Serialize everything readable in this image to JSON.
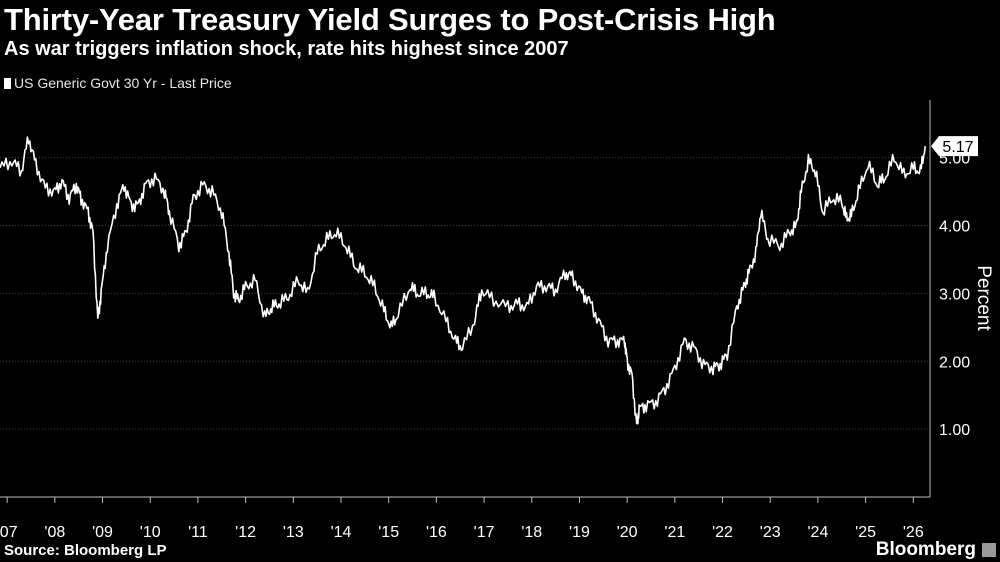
{
  "header": {
    "title": "Thirty-Year Treasury Yield Surges to Post-Crisis High",
    "subtitle": "As war triggers inflation shock, rate hits highest since 2007"
  },
  "footer": {
    "source": "Source: Bloomberg LP",
    "brand": "Bloomberg"
  },
  "colors": {
    "background": "#000000",
    "line": "#ffffff",
    "grid": "#444444",
    "text": "#ffffff"
  },
  "chart_data": {
    "type": "line",
    "ylabel": "Percent",
    "ylim": [
      0.0,
      5.85
    ],
    "yticks": [
      1.0,
      2.0,
      3.0,
      4.0,
      5.0
    ],
    "ytick_labels": [
      "1.00",
      "2.00",
      "3.00",
      "4.00",
      "5.00"
    ],
    "xlim": [
      2006.85,
      2026.35
    ],
    "xticks": [
      2007,
      2008,
      2009,
      2010,
      2011,
      2012,
      2013,
      2014,
      2015,
      2016,
      2017,
      2018,
      2019,
      2020,
      2021,
      2022,
      2023,
      2024,
      2025,
      2026
    ],
    "xtick_labels": [
      "'07",
      "'08",
      "'09",
      "'10",
      "'11",
      "'12",
      "'13",
      "'14",
      "'15",
      "'16",
      "'17",
      "'18",
      "'19",
      "'20",
      "'21",
      "'22",
      "'23",
      "'24",
      "'25",
      "'26"
    ],
    "grid": true,
    "legend_position": "top-left",
    "last_value_label": "5.17",
    "series": [
      {
        "name": "US Generic Govt 30 Yr - Last Price",
        "x": [
          2006.85,
          2007.1,
          2007.3,
          2007.45,
          2007.6,
          2007.8,
          2008.0,
          2008.15,
          2008.3,
          2008.45,
          2008.55,
          2008.7,
          2008.8,
          2008.9,
          2008.97,
          2009.1,
          2009.3,
          2009.45,
          2009.6,
          2009.75,
          2009.9,
          2010.1,
          2010.3,
          2010.4,
          2010.6,
          2010.75,
          2010.9,
          2011.1,
          2011.3,
          2011.5,
          2011.65,
          2011.75,
          2011.85,
          2012.0,
          2012.2,
          2012.4,
          2012.55,
          2012.7,
          2012.9,
          2013.1,
          2013.3,
          2013.5,
          2013.7,
          2013.9,
          2014.1,
          2014.3,
          2014.5,
          2014.7,
          2014.9,
          2015.05,
          2015.2,
          2015.45,
          2015.6,
          2015.8,
          2015.95,
          2016.2,
          2016.4,
          2016.55,
          2016.8,
          2016.95,
          2017.2,
          2017.5,
          2017.7,
          2017.9,
          2018.1,
          2018.3,
          2018.5,
          2018.7,
          2018.85,
          2019.05,
          2019.2,
          2019.4,
          2019.6,
          2019.8,
          2019.95,
          2020.0,
          2020.1,
          2020.2,
          2020.25,
          2020.4,
          2020.6,
          2020.8,
          2021.0,
          2021.2,
          2021.4,
          2021.6,
          2021.8,
          2021.95,
          2022.1,
          2022.3,
          2022.45,
          2022.55,
          2022.7,
          2022.8,
          2022.95,
          2023.2,
          2023.4,
          2023.55,
          2023.65,
          2023.8,
          2023.95,
          2024.1,
          2024.3,
          2024.5,
          2024.6,
          2024.7,
          2024.85,
          2025.05,
          2025.25,
          2025.4,
          2025.6,
          2025.8,
          2026.0,
          2026.15,
          2026.25
        ],
        "values": [
          4.85,
          4.95,
          4.8,
          5.3,
          4.9,
          4.55,
          4.5,
          4.65,
          4.4,
          4.6,
          4.4,
          4.2,
          3.9,
          2.6,
          3.0,
          3.7,
          4.3,
          4.6,
          4.3,
          4.3,
          4.6,
          4.7,
          4.5,
          4.2,
          3.7,
          3.9,
          4.4,
          4.6,
          4.5,
          4.2,
          3.6,
          3.0,
          2.9,
          3.1,
          3.2,
          2.65,
          2.8,
          2.85,
          2.95,
          3.2,
          3.0,
          3.6,
          3.8,
          3.9,
          3.7,
          3.4,
          3.3,
          3.1,
          2.75,
          2.5,
          2.7,
          3.1,
          3.0,
          3.0,
          2.95,
          2.6,
          2.3,
          2.2,
          2.6,
          3.05,
          2.9,
          2.8,
          2.85,
          2.8,
          3.1,
          3.1,
          3.05,
          3.3,
          3.25,
          3.0,
          2.9,
          2.6,
          2.3,
          2.3,
          2.3,
          2.0,
          1.8,
          1.05,
          1.3,
          1.35,
          1.4,
          1.6,
          1.9,
          2.3,
          2.2,
          1.95,
          1.9,
          1.95,
          2.1,
          2.8,
          3.1,
          3.3,
          3.6,
          4.2,
          3.8,
          3.7,
          3.9,
          4.0,
          4.5,
          4.95,
          4.8,
          4.2,
          4.4,
          4.35,
          4.1,
          4.15,
          4.5,
          4.9,
          4.6,
          4.7,
          5.0,
          4.75,
          4.85,
          4.8,
          5.17
        ]
      }
    ]
  }
}
